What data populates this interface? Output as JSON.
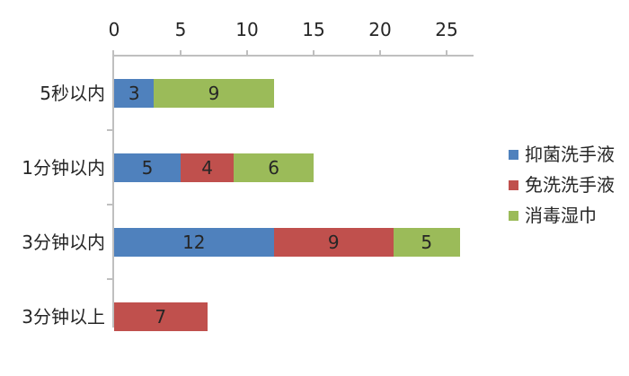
{
  "chart_data": {
    "type": "bar",
    "orientation": "horizontal",
    "stacked": true,
    "title": "",
    "categories": [
      "5秒以内",
      "1分钟以内",
      "3分钟以内",
      "3分钟以上"
    ],
    "series": [
      {
        "name": "抑菌洗手液",
        "color": "#4F81BD",
        "values": [
          3,
          5,
          12,
          0
        ]
      },
      {
        "name": "免洗洗手液",
        "color": "#C0504D",
        "values": [
          0,
          4,
          9,
          7
        ]
      },
      {
        "name": "消毒湿巾",
        "color": "#9BBB59",
        "values": [
          9,
          6,
          5,
          0
        ]
      }
    ],
    "x_axis": {
      "position": "top",
      "ticks": [
        0,
        5,
        10,
        15,
        20,
        25
      ],
      "min": 0,
      "max": 27
    },
    "grid": false,
    "data_labels": true,
    "legend_position": "right"
  },
  "style": {
    "axis_color": "#BFBFBF",
    "text_color": "#262626",
    "background": "#FFFFFF"
  }
}
